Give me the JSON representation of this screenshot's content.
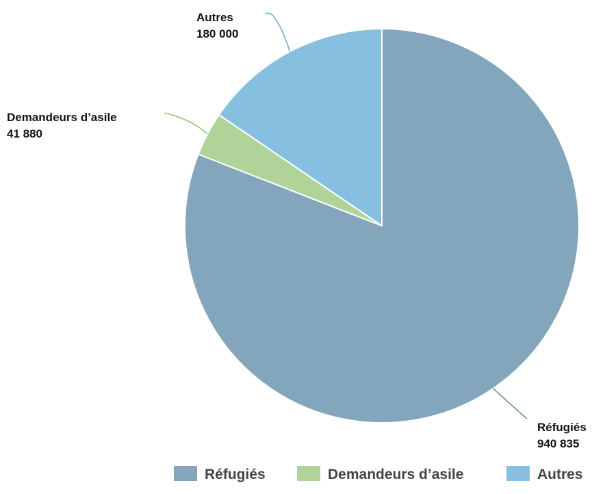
{
  "chart_data": {
    "type": "pie",
    "title": "",
    "slices": [
      {
        "name": "Réfugiés",
        "value": 940835,
        "value_label": "940 835",
        "color": "#84a6bc",
        "leader_color": "#5f86a0"
      },
      {
        "name": "Demandeurs d’asile",
        "value": 41880,
        "value_label": "41 880",
        "color": "#b0d39a",
        "leader_color": "#8fc271"
      },
      {
        "name": "Autres",
        "value": 180000,
        "value_label": "180 000",
        "color": "#86bfe0",
        "leader_color": "#5ea9d4"
      }
    ],
    "legend": {
      "position": "bottom-right",
      "entries": [
        "Réfugiés",
        "Demandeurs d’asile",
        "Autres"
      ]
    }
  }
}
